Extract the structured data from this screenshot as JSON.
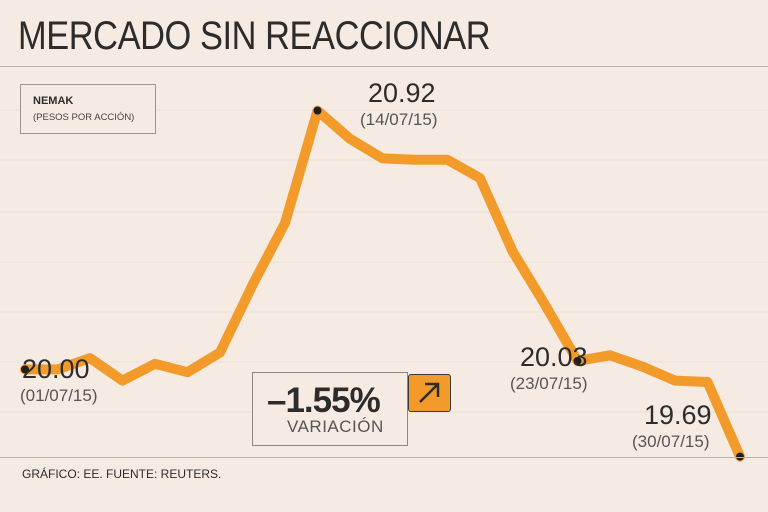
{
  "header": {
    "title": "MERCADO SIN REACCIONAR"
  },
  "legend": {
    "name": "NEMAK",
    "unit": "(PESOS POR ACCIÓN)"
  },
  "chart_data": {
    "type": "line",
    "title": "MERCADO SIN REACCIONAR",
    "series": [
      {
        "name": "NEMAK",
        "values": [
          20.0,
          20.0,
          20.04,
          19.96,
          20.02,
          19.99,
          20.06,
          20.3,
          20.52,
          20.92,
          20.82,
          20.75,
          20.745,
          20.745,
          20.68,
          20.42,
          20.23,
          20.03,
          20.05,
          20.01,
          19.96,
          19.955,
          19.69
        ]
      }
    ],
    "ylim": [
      19.5,
      21.1
    ],
    "line_color": "#f39b2a",
    "annotations": [
      {
        "index": 0,
        "value": "20.00",
        "date": "(01/07/15)"
      },
      {
        "index": 9,
        "value": "20.92",
        "date": "(14/07/15)"
      },
      {
        "index": 17,
        "value": "20.03",
        "date": "(23/07/15)"
      },
      {
        "index": 22,
        "value": "19.69",
        "date": "(30/07/15)"
      }
    ]
  },
  "variation": {
    "value": "–1.55%",
    "label": "VARIACIÓN",
    "icon": "arrow-up-right-icon"
  },
  "footer": {
    "source": "GRÁFICO: EE. FUENTE: REUTERS."
  }
}
